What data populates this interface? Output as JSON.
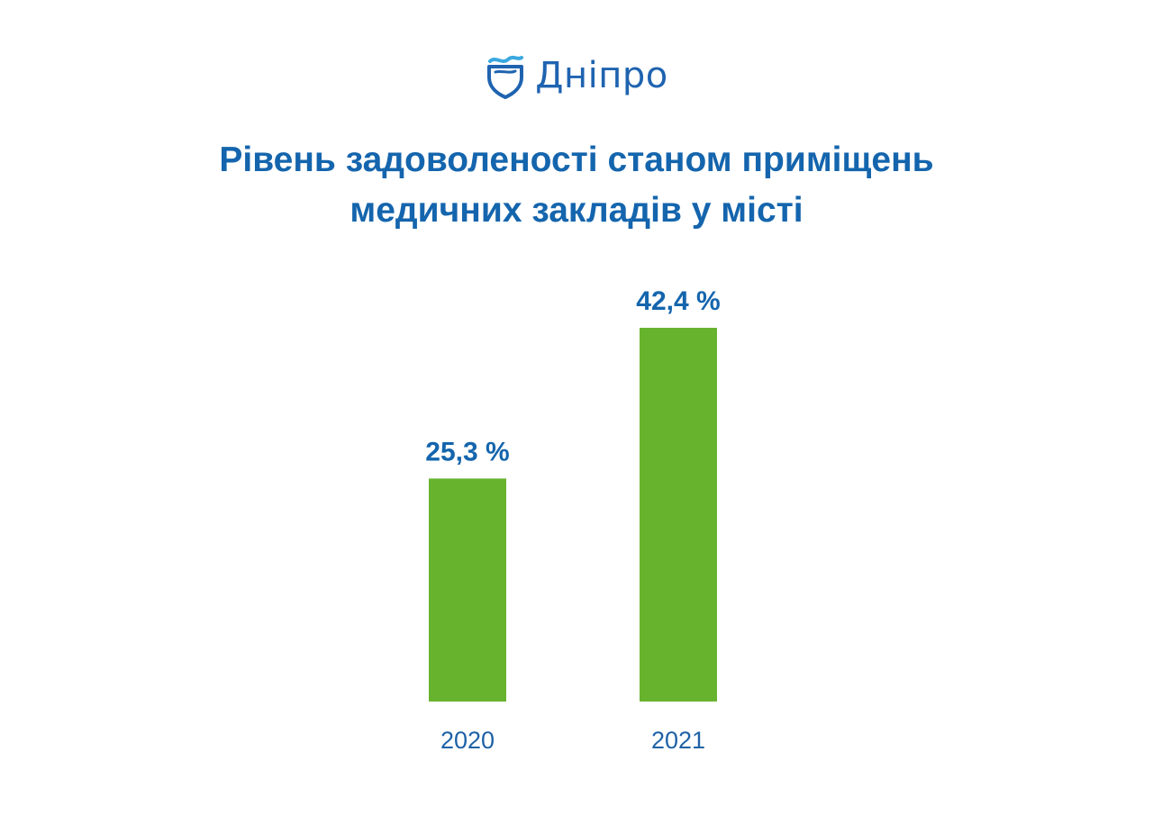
{
  "logo": {
    "text": "Дніпро",
    "icon": "shield-wave-icon",
    "color": "#1f63b0"
  },
  "title_lines": [
    "Рівень задоволеності станом приміщень",
    "медичних закладів у місті"
  ],
  "colors": {
    "bar": "#67b32e",
    "label": "#1465ad",
    "axis_text": "#1e62a6"
  },
  "chart_data": {
    "type": "bar",
    "title": "Рівень задоволеності станом приміщень медичних закладів у місті",
    "categories": [
      "2020",
      "2021"
    ],
    "values": [
      25.3,
      42.4
    ],
    "value_labels": [
      "25,3 %",
      "42,4 %"
    ],
    "unit": "%",
    "xlabel": "",
    "ylabel": "",
    "ylim": [
      0,
      42.4
    ],
    "grid": false,
    "legend": "none"
  }
}
